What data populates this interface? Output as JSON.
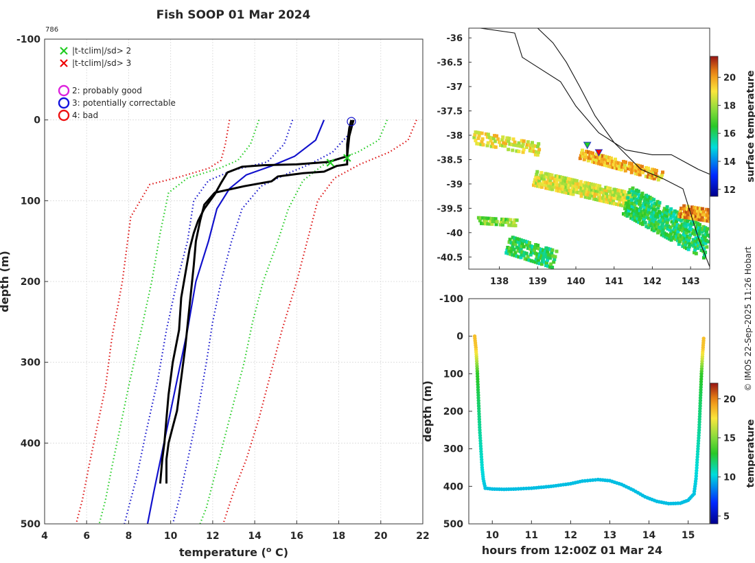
{
  "title": "Fish SOOP 01 Mar 2024",
  "profile_id": "786",
  "credit": "© IMOS 22-Sep-2025 11:26 Hobart",
  "chart_data": [
    {
      "type": "line",
      "name": "profile",
      "xlabel": "temperature (",
      "xlabel_sup": "o",
      "xlabel_end": " C)",
      "ylabel": "depth (m)",
      "xlim": [
        4,
        22
      ],
      "ylim": [
        -100,
        500
      ],
      "xticks": [
        4,
        6,
        8,
        10,
        12,
        14,
        16,
        18,
        20,
        22
      ],
      "yticks": [
        -100,
        0,
        100,
        200,
        300,
        400,
        500
      ],
      "legend": [
        {
          "marker": "x",
          "color": "#22cc22",
          "label": "|t-tclim|/sd> 2"
        },
        {
          "marker": "x",
          "color": "#ee0000",
          "label": "|t-tclim|/sd> 3"
        },
        {
          "marker": "o",
          "color": "#dd22dd",
          "label": "2: probably good"
        },
        {
          "marker": "o",
          "color": "#1111dd",
          "label": "3: potentially correctable"
        },
        {
          "marker": "o",
          "color": "#ee1111",
          "label": "4: bad"
        }
      ],
      "series": [
        {
          "name": "clim-3sd-left",
          "color": "#dd1111",
          "style": "dotted",
          "points": [
            [
              12.8,
              0
            ],
            [
              12.6,
              30
            ],
            [
              12.4,
              50
            ],
            [
              11.8,
              60
            ],
            [
              10.5,
              70
            ],
            [
              9.0,
              80
            ],
            [
              8.1,
              120
            ],
            [
              7.7,
              200
            ],
            [
              7.2,
              270
            ],
            [
              6.9,
              330
            ],
            [
              6.5,
              380
            ],
            [
              6.1,
              430
            ],
            [
              5.8,
              470
            ],
            [
              5.5,
              500
            ]
          ]
        },
        {
          "name": "clim-2sd-left",
          "color": "#22cc22",
          "style": "dotted",
          "points": [
            [
              14.2,
              0
            ],
            [
              13.8,
              30
            ],
            [
              13.2,
              50
            ],
            [
              12.3,
              60
            ],
            [
              10.8,
              72
            ],
            [
              9.9,
              90
            ],
            [
              9.5,
              140
            ],
            [
              9.1,
              200
            ],
            [
              8.6,
              260
            ],
            [
              8.0,
              330
            ],
            [
              7.6,
              380
            ],
            [
              7.2,
              430
            ],
            [
              6.9,
              470
            ],
            [
              6.6,
              500
            ]
          ]
        },
        {
          "name": "clim-1sd-left",
          "color": "#1111cc",
          "style": "dotted",
          "points": [
            [
              15.8,
              0
            ],
            [
              15.4,
              30
            ],
            [
              14.6,
              52
            ],
            [
              13.0,
              62
            ],
            [
              11.8,
              75
            ],
            [
              11.1,
              100
            ],
            [
              10.8,
              150
            ],
            [
              10.3,
              200
            ],
            [
              9.8,
              260
            ],
            [
              9.4,
              320
            ],
            [
              8.8,
              390
            ],
            [
              8.4,
              440
            ],
            [
              8.0,
              480
            ],
            [
              7.8,
              500
            ]
          ]
        },
        {
          "name": "clim-mean",
          "color": "#1111cc",
          "style": "solid",
          "points": [
            [
              17.3,
              0
            ],
            [
              16.9,
              25
            ],
            [
              15.9,
              45
            ],
            [
              14.8,
              57
            ],
            [
              13.6,
              68
            ],
            [
              12.8,
              85
            ],
            [
              12.2,
              110
            ],
            [
              11.8,
              150
            ],
            [
              11.2,
              200
            ],
            [
              10.8,
              260
            ],
            [
              10.4,
              310
            ],
            [
              10.0,
              360
            ],
            [
              9.6,
              410
            ],
            [
              9.2,
              460
            ],
            [
              8.9,
              500
            ]
          ]
        },
        {
          "name": "clim-1sd-right",
          "color": "#1111cc",
          "style": "dotted",
          "points": [
            [
              18.4,
              20
            ],
            [
              17.7,
              40
            ],
            [
              16.6,
              55
            ],
            [
              15.6,
              66
            ],
            [
              14.3,
              82
            ],
            [
              13.4,
              110
            ],
            [
              12.9,
              150
            ],
            [
              12.4,
              200
            ],
            [
              12.0,
              250
            ],
            [
              11.7,
              300
            ],
            [
              11.3,
              360
            ],
            [
              10.9,
              410
            ],
            [
              10.4,
              470
            ],
            [
              10.1,
              500
            ]
          ]
        },
        {
          "name": "clim-2sd-right",
          "color": "#22cc22",
          "style": "dotted",
          "points": [
            [
              20.3,
              0
            ],
            [
              19.9,
              25
            ],
            [
              18.9,
              40
            ],
            [
              17.3,
              55
            ],
            [
              16.3,
              75
            ],
            [
              15.6,
              110
            ],
            [
              15.1,
              150
            ],
            [
              14.4,
              200
            ],
            [
              13.9,
              250
            ],
            [
              13.5,
              300
            ],
            [
              12.8,
              370
            ],
            [
              12.2,
              430
            ],
            [
              11.7,
              480
            ],
            [
              11.4,
              500
            ]
          ]
        },
        {
          "name": "clim-3sd-right",
          "color": "#dd1111",
          "style": "dotted",
          "points": [
            [
              21.7,
              0
            ],
            [
              21.3,
              25
            ],
            [
              20.4,
              40
            ],
            [
              19.0,
              55
            ],
            [
              17.8,
              72
            ],
            [
              17.0,
              100
            ],
            [
              16.5,
              150
            ],
            [
              16.0,
              200
            ],
            [
              15.3,
              260
            ],
            [
              14.7,
              320
            ],
            [
              14.2,
              370
            ],
            [
              13.6,
              420
            ],
            [
              13.0,
              460
            ],
            [
              12.5,
              500
            ]
          ]
        },
        {
          "name": "profile-down",
          "color": "#000000",
          "style": "solid",
          "points": [
            [
              18.7,
              0
            ],
            [
              18.5,
              20
            ],
            [
              18.4,
              45
            ],
            [
              17.5,
              52
            ],
            [
              16.0,
              55
            ],
            [
              14.4,
              56
            ],
            [
              13.4,
              58
            ],
            [
              12.7,
              65
            ],
            [
              12.4,
              78
            ],
            [
              12.1,
              92
            ],
            [
              11.6,
              110
            ],
            [
              11.3,
              125
            ],
            [
              11.1,
              140
            ],
            [
              10.9,
              160
            ],
            [
              10.7,
              190
            ],
            [
              10.5,
              220
            ],
            [
              10.4,
              260
            ],
            [
              10.1,
              300
            ],
            [
              9.9,
              340
            ],
            [
              9.8,
              370
            ],
            [
              9.7,
              400
            ],
            [
              9.6,
              420
            ],
            [
              9.5,
              450
            ]
          ]
        },
        {
          "name": "profile-up",
          "color": "#000000",
          "style": "solid",
          "points": [
            [
              9.8,
              450
            ],
            [
              9.8,
              420
            ],
            [
              9.9,
              400
            ],
            [
              10.1,
              380
            ],
            [
              10.3,
              360
            ],
            [
              10.5,
              320
            ],
            [
              10.7,
              280
            ],
            [
              10.9,
              230
            ],
            [
              11.1,
              180
            ],
            [
              11.2,
              150
            ],
            [
              11.4,
              125
            ],
            [
              11.6,
              105
            ],
            [
              12.1,
              90
            ],
            [
              13.5,
              82
            ],
            [
              14.8,
              76
            ],
            [
              15.1,
              70
            ],
            [
              16.3,
              66
            ],
            [
              17.3,
              64
            ],
            [
              17.9,
              57
            ],
            [
              18.4,
              55
            ],
            [
              18.4,
              30
            ],
            [
              18.5,
              10
            ],
            [
              18.6,
              0
            ]
          ]
        }
      ],
      "flag_points": [
        {
          "marker": "o",
          "color": "#1111cc",
          "x": 18.6,
          "y": 2
        },
        {
          "marker": "x",
          "color": "#22cc22",
          "x": 18.4,
          "y": 47
        },
        {
          "marker": "x",
          "color": "#22cc22",
          "x": 17.6,
          "y": 53
        }
      ]
    },
    {
      "type": "heatmap",
      "name": "map",
      "colorbar_label": "surface temperature",
      "xticks": [
        138,
        139,
        140,
        141,
        142,
        143
      ],
      "yticks": [
        -36,
        -36.5,
        -37,
        -37.5,
        -38,
        -38.5,
        -39,
        -39.5,
        -40,
        -40.5
      ],
      "xlim": [
        137.2,
        143.5
      ],
      "ylim": [
        -40.75,
        -35.8
      ],
      "clim": [
        11.5,
        21.5
      ],
      "cticks": [
        12,
        14,
        16,
        18,
        20
      ],
      "markers": [
        {
          "marker": "triangle",
          "color": "#ee0000",
          "x": 140.6,
          "y": -38.35
        },
        {
          "marker": "triangle",
          "color": "#22cc22",
          "x": 140.3,
          "y": -38.2
        }
      ]
    },
    {
      "type": "scatter",
      "name": "depth-time",
      "xlabel": "hours from 12:00Z 01 Mar 24",
      "ylabel": "depth (m)",
      "colorbar_label": "temperature",
      "xlim": [
        9.4,
        15.55
      ],
      "ylim": [
        -100,
        500
      ],
      "xticks": [
        10,
        11,
        12,
        13,
        14,
        15
      ],
      "yticks": [
        -100,
        0,
        100,
        200,
        300,
        400,
        500
      ],
      "clim": [
        4,
        22
      ],
      "cticks": [
        5,
        10,
        15,
        20
      ],
      "points": [
        [
          9.55,
          0,
          18.5
        ],
        [
          9.58,
          30,
          18.4
        ],
        [
          9.6,
          60,
          16.5
        ],
        [
          9.62,
          100,
          13.2
        ],
        [
          9.64,
          150,
          12.4
        ],
        [
          9.66,
          200,
          11.8
        ],
        [
          9.68,
          250,
          11.3
        ],
        [
          9.71,
          300,
          10.8
        ],
        [
          9.74,
          350,
          10.4
        ],
        [
          9.77,
          380,
          10.1
        ],
        [
          9.82,
          405,
          9.8
        ],
        [
          10.0,
          407,
          9.7
        ],
        [
          10.3,
          408,
          9.7
        ],
        [
          10.6,
          407,
          9.7
        ],
        [
          11.0,
          405,
          9.7
        ],
        [
          11.5,
          400,
          9.7
        ],
        [
          12.0,
          393,
          9.7
        ],
        [
          12.3,
          386,
          9.7
        ],
        [
          12.7,
          382,
          9.7
        ],
        [
          13.0,
          385,
          9.7
        ],
        [
          13.3,
          395,
          9.7
        ],
        [
          13.6,
          410,
          9.7
        ],
        [
          13.9,
          428,
          9.7
        ],
        [
          14.2,
          440,
          9.7
        ],
        [
          14.5,
          446,
          9.7
        ],
        [
          14.8,
          445,
          9.7
        ],
        [
          15.0,
          437,
          9.7
        ],
        [
          15.15,
          420,
          9.8
        ],
        [
          15.2,
          380,
          10.1
        ],
        [
          15.25,
          300,
          10.8
        ],
        [
          15.28,
          250,
          11.3
        ],
        [
          15.3,
          200,
          11.8
        ],
        [
          15.32,
          150,
          12.4
        ],
        [
          15.34,
          100,
          13.2
        ],
        [
          15.36,
          60,
          16.5
        ],
        [
          15.38,
          30,
          18.4
        ],
        [
          15.4,
          0,
          18.5
        ]
      ]
    }
  ]
}
